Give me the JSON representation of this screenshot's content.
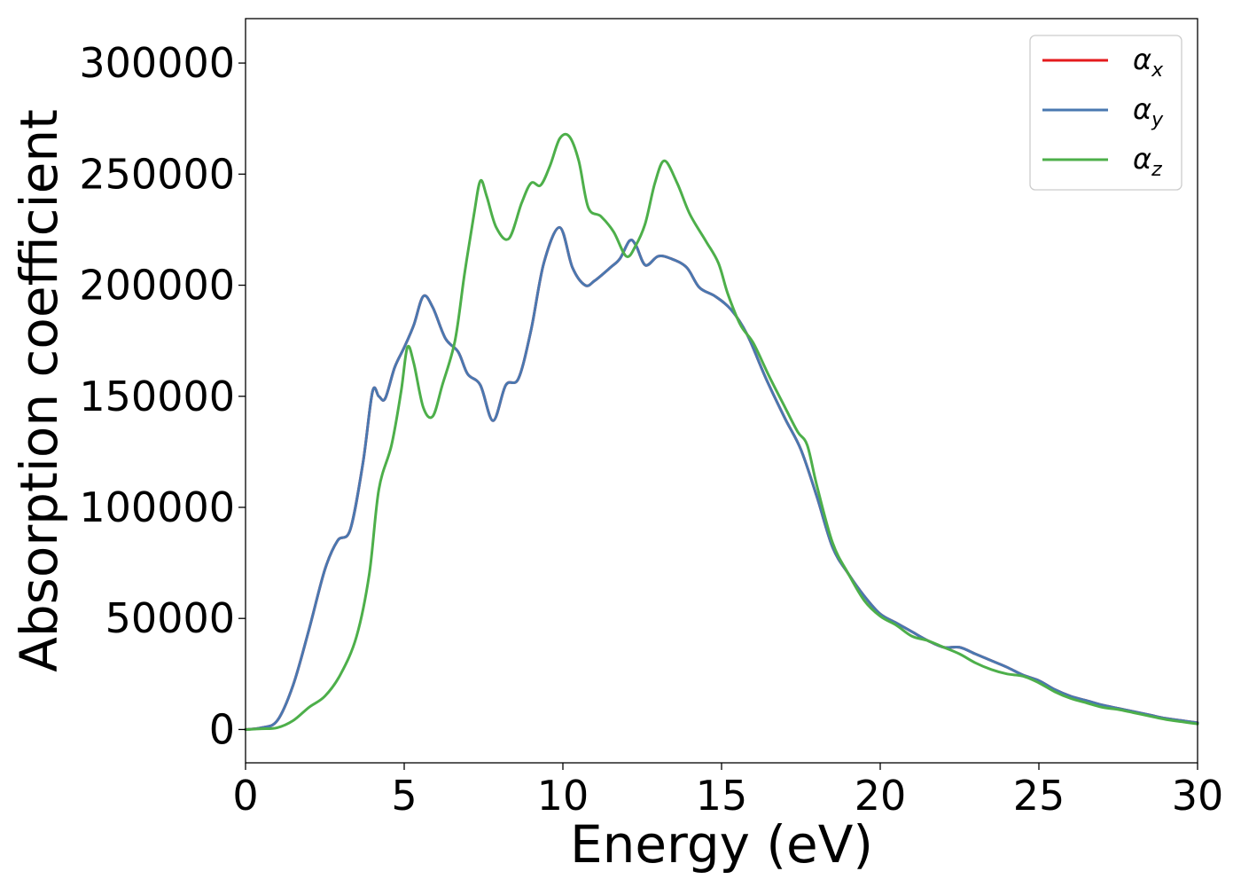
{
  "chart_data": {
    "type": "line",
    "xlabel": "Energy (eV)",
    "ylabel": "Absorption coefficient",
    "xlim": [
      0,
      30
    ],
    "ylim": [
      -15000,
      320000
    ],
    "xticks": [
      0,
      5,
      10,
      15,
      20,
      25,
      30
    ],
    "yticks": [
      0,
      50000,
      100000,
      150000,
      200000,
      250000,
      300000
    ],
    "legend": "top-right",
    "grid": false,
    "series": [
      {
        "name": "α",
        "subscript": "x",
        "color": "#e41a1c",
        "points": [
          [
            0,
            0
          ],
          [
            0.5,
            800
          ],
          [
            1.0,
            4000
          ],
          [
            1.5,
            20000
          ],
          [
            2.0,
            45000
          ],
          [
            2.5,
            72000
          ],
          [
            2.9,
            85000
          ],
          [
            3.3,
            90000
          ],
          [
            3.7,
            120000
          ],
          [
            4.0,
            152000
          ],
          [
            4.2,
            150000
          ],
          [
            4.4,
            149000
          ],
          [
            4.7,
            163000
          ],
          [
            5.0,
            172000
          ],
          [
            5.3,
            182000
          ],
          [
            5.6,
            195000
          ],
          [
            5.9,
            190000
          ],
          [
            6.3,
            176000
          ],
          [
            6.7,
            170000
          ],
          [
            7.0,
            160000
          ],
          [
            7.4,
            155000
          ],
          [
            7.8,
            139000
          ],
          [
            8.2,
            155000
          ],
          [
            8.6,
            158000
          ],
          [
            9.0,
            180000
          ],
          [
            9.4,
            210000
          ],
          [
            9.9,
            226000
          ],
          [
            10.3,
            208000
          ],
          [
            10.7,
            200000
          ],
          [
            11.0,
            202000
          ],
          [
            11.5,
            208000
          ],
          [
            11.8,
            212000
          ],
          [
            12.1,
            220000
          ],
          [
            12.3,
            218000
          ],
          [
            12.6,
            209000
          ],
          [
            13.0,
            213000
          ],
          [
            13.4,
            212000
          ],
          [
            13.9,
            208000
          ],
          [
            14.3,
            199000
          ],
          [
            14.8,
            195000
          ],
          [
            15.3,
            189000
          ],
          [
            15.8,
            178000
          ],
          [
            16.4,
            158000
          ],
          [
            17.0,
            140000
          ],
          [
            17.5,
            126000
          ],
          [
            18.0,
            105000
          ],
          [
            18.5,
            82000
          ],
          [
            19.0,
            70000
          ],
          [
            19.5,
            60000
          ],
          [
            20.0,
            52000
          ],
          [
            20.5,
            48000
          ],
          [
            21.0,
            44000
          ],
          [
            21.5,
            40000
          ],
          [
            22.0,
            37000
          ],
          [
            22.5,
            37000
          ],
          [
            23.0,
            34000
          ],
          [
            23.5,
            31000
          ],
          [
            24.0,
            28000
          ],
          [
            24.5,
            24500
          ],
          [
            25.0,
            22000
          ],
          [
            25.5,
            18000
          ],
          [
            26.0,
            15000
          ],
          [
            26.5,
            13000
          ],
          [
            27.0,
            11000
          ],
          [
            27.5,
            9500
          ],
          [
            28.0,
            8000
          ],
          [
            28.5,
            6500
          ],
          [
            29.0,
            5000
          ],
          [
            29.5,
            4000
          ],
          [
            30.0,
            3000
          ]
        ]
      },
      {
        "name": "α",
        "subscript": "y",
        "color": "#4a78b0",
        "points": [
          [
            0,
            0
          ],
          [
            0.5,
            800
          ],
          [
            1.0,
            4000
          ],
          [
            1.5,
            20000
          ],
          [
            2.0,
            45000
          ],
          [
            2.5,
            72000
          ],
          [
            2.9,
            85000
          ],
          [
            3.3,
            90000
          ],
          [
            3.7,
            120000
          ],
          [
            4.0,
            152000
          ],
          [
            4.2,
            150000
          ],
          [
            4.4,
            149000
          ],
          [
            4.7,
            163000
          ],
          [
            5.0,
            172000
          ],
          [
            5.3,
            182000
          ],
          [
            5.6,
            195000
          ],
          [
            5.9,
            190000
          ],
          [
            6.3,
            176000
          ],
          [
            6.7,
            170000
          ],
          [
            7.0,
            160000
          ],
          [
            7.4,
            155000
          ],
          [
            7.8,
            139000
          ],
          [
            8.2,
            155000
          ],
          [
            8.6,
            158000
          ],
          [
            9.0,
            180000
          ],
          [
            9.4,
            210000
          ],
          [
            9.9,
            226000
          ],
          [
            10.3,
            208000
          ],
          [
            10.7,
            200000
          ],
          [
            11.0,
            202000
          ],
          [
            11.5,
            208000
          ],
          [
            11.8,
            212000
          ],
          [
            12.1,
            220000
          ],
          [
            12.3,
            218000
          ],
          [
            12.6,
            209000
          ],
          [
            13.0,
            213000
          ],
          [
            13.4,
            212000
          ],
          [
            13.9,
            208000
          ],
          [
            14.3,
            199000
          ],
          [
            14.8,
            195000
          ],
          [
            15.3,
            189000
          ],
          [
            15.8,
            178000
          ],
          [
            16.4,
            158000
          ],
          [
            17.0,
            140000
          ],
          [
            17.5,
            126000
          ],
          [
            18.0,
            105000
          ],
          [
            18.5,
            82000
          ],
          [
            19.0,
            70000
          ],
          [
            19.5,
            60000
          ],
          [
            20.0,
            52000
          ],
          [
            20.5,
            48000
          ],
          [
            21.0,
            44000
          ],
          [
            21.5,
            40000
          ],
          [
            22.0,
            37000
          ],
          [
            22.5,
            37000
          ],
          [
            23.0,
            34000
          ],
          [
            23.5,
            31000
          ],
          [
            24.0,
            28000
          ],
          [
            24.5,
            24500
          ],
          [
            25.0,
            22000
          ],
          [
            25.5,
            18000
          ],
          [
            26.0,
            15000
          ],
          [
            26.5,
            13000
          ],
          [
            27.0,
            11000
          ],
          [
            27.5,
            9500
          ],
          [
            28.0,
            8000
          ],
          [
            28.5,
            6500
          ],
          [
            29.0,
            5000
          ],
          [
            29.5,
            4000
          ],
          [
            30.0,
            3000
          ]
        ]
      },
      {
        "name": "α",
        "subscript": "z",
        "color": "#4daf4a",
        "points": [
          [
            0,
            0
          ],
          [
            0.5,
            300
          ],
          [
            1.0,
            800
          ],
          [
            1.5,
            4000
          ],
          [
            2.0,
            10000
          ],
          [
            2.5,
            15000
          ],
          [
            3.0,
            25000
          ],
          [
            3.5,
            42000
          ],
          [
            3.9,
            70000
          ],
          [
            4.2,
            108000
          ],
          [
            4.6,
            128000
          ],
          [
            4.9,
            152000
          ],
          [
            5.1,
            172000
          ],
          [
            5.3,
            165000
          ],
          [
            5.6,
            145000
          ],
          [
            5.9,
            141000
          ],
          [
            6.2,
            155000
          ],
          [
            6.6,
            175000
          ],
          [
            6.9,
            205000
          ],
          [
            7.2,
            232000
          ],
          [
            7.4,
            247000
          ],
          [
            7.6,
            240000
          ],
          [
            7.9,
            226000
          ],
          [
            8.3,
            221000
          ],
          [
            8.7,
            237000
          ],
          [
            9.0,
            246000
          ],
          [
            9.3,
            245000
          ],
          [
            9.6,
            254000
          ],
          [
            9.9,
            266000
          ],
          [
            10.2,
            267000
          ],
          [
            10.5,
            256000
          ],
          [
            10.8,
            235000
          ],
          [
            11.2,
            231000
          ],
          [
            11.6,
            224000
          ],
          [
            12.0,
            213000
          ],
          [
            12.3,
            218000
          ],
          [
            12.6,
            228000
          ],
          [
            12.9,
            246000
          ],
          [
            13.2,
            256000
          ],
          [
            13.6,
            246000
          ],
          [
            14.0,
            232000
          ],
          [
            14.5,
            220000
          ],
          [
            14.9,
            210000
          ],
          [
            15.2,
            196000
          ],
          [
            15.6,
            182000
          ],
          [
            16.0,
            174000
          ],
          [
            16.5,
            159000
          ],
          [
            17.0,
            145000
          ],
          [
            17.4,
            134000
          ],
          [
            17.7,
            128000
          ],
          [
            18.0,
            110000
          ],
          [
            18.5,
            84000
          ],
          [
            19.0,
            70000
          ],
          [
            19.5,
            58000
          ],
          [
            20.0,
            51000
          ],
          [
            20.5,
            47000
          ],
          [
            21.0,
            42000
          ],
          [
            21.5,
            40000
          ],
          [
            22.0,
            37000
          ],
          [
            22.5,
            34000
          ],
          [
            23.0,
            30000
          ],
          [
            23.5,
            27000
          ],
          [
            24.0,
            25000
          ],
          [
            24.5,
            24000
          ],
          [
            25.0,
            21000
          ],
          [
            25.5,
            17000
          ],
          [
            26.0,
            14000
          ],
          [
            26.5,
            12000
          ],
          [
            27.0,
            10000
          ],
          [
            27.5,
            9000
          ],
          [
            28.0,
            7500
          ],
          [
            28.5,
            6000
          ],
          [
            29.0,
            4500
          ],
          [
            29.5,
            3500
          ],
          [
            30.0,
            2500
          ]
        ]
      }
    ]
  }
}
